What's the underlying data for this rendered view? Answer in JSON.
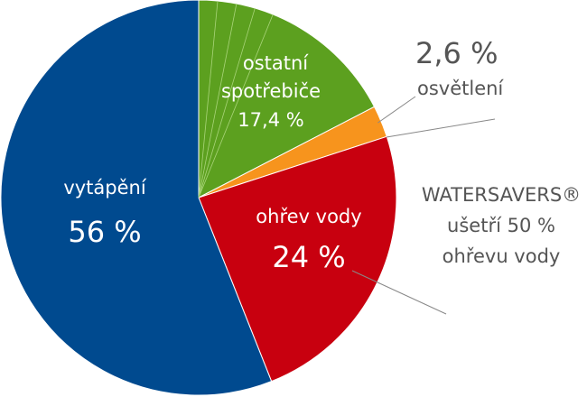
{
  "chart_data": {
    "type": "pie",
    "slices": [
      {
        "name": "vytápění",
        "value": 56,
        "label_value": "56 %",
        "color": "#004a8f"
      },
      {
        "name": "ostatní spotřebiče",
        "name_line1": "ostatní",
        "name_line2": "spotřebiče",
        "value": 17.4,
        "label_value": "17,4 %",
        "color": "#5ca01f"
      },
      {
        "name": "osvětlení",
        "value": 2.6,
        "label_value": "2,6 %",
        "color": "#f7941d"
      },
      {
        "name": "ohřev vody",
        "value": 24,
        "label_value": "24 %",
        "color": "#c8000f"
      }
    ],
    "annotation": {
      "line1": "WATERSAVERS®",
      "line2": "ušetří 50 %",
      "line3": "ohřevu vody"
    }
  }
}
